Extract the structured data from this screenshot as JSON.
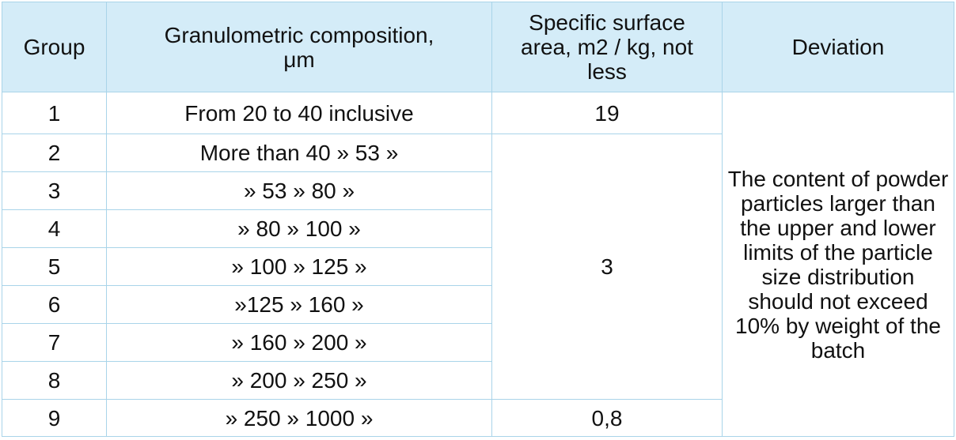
{
  "table": {
    "headers": [
      "Group",
      "Granulometric composition, μm",
      "Specific surface area, m2 / kg, not less",
      "Deviation"
    ],
    "rows": [
      {
        "group": "1",
        "composition": "From 20 to 40 inclusive"
      },
      {
        "group": "2",
        "composition": "More than 40 » 53 »"
      },
      {
        "group": "3",
        "composition": "» 53 » 80 »"
      },
      {
        "group": "4",
        "composition": "» 80 » 100 »"
      },
      {
        "group": "5",
        "composition": "» 100 » 125 »"
      },
      {
        "group": "6",
        "composition": "»125 » 160 »"
      },
      {
        "group": "7",
        "composition": "» 160 » 200 »"
      },
      {
        "group": "8",
        "composition": "» 200 » 250 »"
      },
      {
        "group": "9",
        "composition": "» 250 » 1000 »"
      }
    ],
    "surface_area": {
      "group_1": "19",
      "groups_2_to_8": "3",
      "group_9": "0,8"
    },
    "deviation_text": "The content of powder particles larger than the upper and lower limits of the particle size distribution should not exceed 10% by weight of the batch"
  },
  "colors": {
    "header_background": "#d4ecf8",
    "border": "#a9d4e9",
    "text": "#111111"
  }
}
